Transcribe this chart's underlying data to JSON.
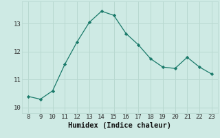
{
  "x": [
    8,
    9,
    10,
    11,
    12,
    13,
    14,
    15,
    16,
    17,
    18,
    19,
    20,
    21,
    22,
    23
  ],
  "y": [
    10.4,
    10.3,
    10.6,
    11.55,
    12.35,
    13.05,
    13.45,
    13.3,
    12.65,
    12.25,
    11.75,
    11.45,
    11.4,
    11.8,
    11.45,
    11.2
  ],
  "title": "",
  "xlabel": "Humidex (Indice chaleur)",
  "ylabel": "",
  "xlim": [
    7.5,
    23.5
  ],
  "ylim": [
    9.8,
    13.8
  ],
  "xticks": [
    8,
    9,
    10,
    11,
    12,
    13,
    14,
    15,
    16,
    17,
    18,
    19,
    20,
    21,
    22,
    23
  ],
  "yticks": [
    10,
    11,
    12,
    13
  ],
  "line_color": "#1a7a6a",
  "marker": "D",
  "marker_size": 2.2,
  "bg_color": "#ceeae4",
  "grid_color": "#b8d8d0",
  "tick_label_fontsize": 6.5,
  "xlabel_fontsize": 7.5
}
